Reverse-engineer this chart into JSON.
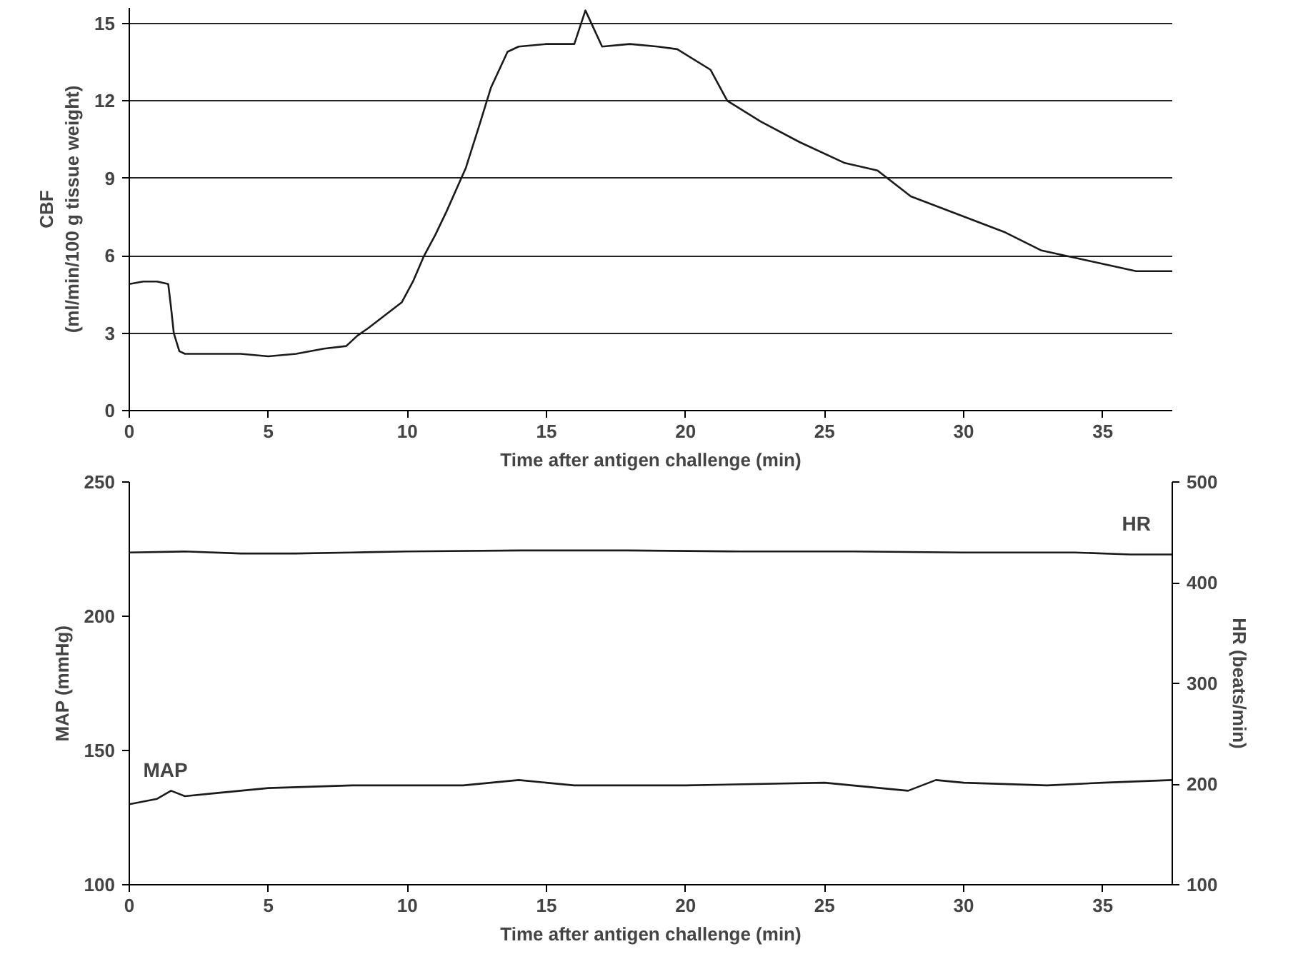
{
  "chart_data": [
    {
      "type": "line",
      "xlabel": "Time after antigen challenge (min)",
      "ylabel": "CBF\n(ml/min/100 g tissue weight)",
      "xlim": [
        0,
        37.5
      ],
      "xticks": [
        0,
        5,
        10,
        15,
        20,
        25,
        30,
        35
      ],
      "ylim": [
        0,
        15.6
      ],
      "yticks": [
        0,
        3,
        6,
        9,
        12,
        15
      ],
      "grid": "y",
      "series": [
        {
          "color": "#1a1a1a",
          "x": [
            0,
            0.5,
            1,
            1.4,
            1.5,
            1.6,
            1.8,
            2,
            3,
            4,
            5,
            6,
            7,
            7.8,
            8.2,
            8.6,
            9.2,
            9.8,
            10.2,
            10.6,
            11,
            11.4,
            12.1,
            12.6,
            13,
            13.6,
            14,
            15,
            16,
            16.4,
            17,
            18,
            19,
            19.7,
            20.9,
            21.5,
            22.7,
            24.1,
            25.7,
            26.9,
            28.1,
            29.8,
            31.5,
            32.8,
            34.5,
            36.2,
            37.5
          ],
          "values": [
            4.9,
            5.0,
            5.0,
            4.9,
            4.0,
            3.0,
            2.3,
            2.2,
            2.2,
            2.2,
            2.1,
            2.2,
            2.4,
            2.5,
            2.9,
            3.2,
            3.7,
            4.2,
            5.0,
            6.0,
            6.8,
            7.7,
            9.4,
            11.1,
            12.5,
            13.9,
            14.1,
            14.2,
            14.2,
            15.5,
            14.1,
            14.2,
            14.1,
            14.0,
            13.2,
            12.0,
            11.2,
            10.4,
            9.6,
            9.3,
            8.3,
            7.6,
            6.9,
            6.2,
            5.8,
            5.4,
            5.4
          ]
        }
      ]
    },
    {
      "type": "line",
      "xlabel": "Time after antigen challenge (min)",
      "ylabel": "MAP (mmHg)",
      "y2label": "HR (beats/min)",
      "xlim": [
        0,
        37.5
      ],
      "xticks": [
        0,
        5,
        10,
        15,
        20,
        25,
        30,
        35
      ],
      "ylim": [
        100,
        250
      ],
      "yticks": [
        100,
        150,
        200,
        250
      ],
      "y2lim": [
        100,
        500
      ],
      "y2ticks": [
        100,
        200,
        300,
        400,
        500
      ],
      "grid": false,
      "series": [
        {
          "name": "HR",
          "color": "#1a1a1a",
          "axis": "y2",
          "x": [
            0,
            2,
            4,
            6,
            8,
            10,
            14,
            18,
            22,
            26,
            30,
            34,
            36,
            37.5
          ],
          "values": [
            430,
            431,
            429,
            429,
            430,
            431,
            432,
            432,
            431,
            431,
            430,
            430,
            428,
            428
          ]
        },
        {
          "name": "MAP",
          "color": "#1a1a1a",
          "x": [
            0,
            0.5,
            1,
            1.5,
            2,
            3,
            4,
            5,
            8,
            12,
            14,
            16,
            20,
            25,
            28,
            29,
            30,
            33,
            35,
            37.5
          ],
          "values": [
            130,
            131,
            132,
            135,
            133,
            134,
            135,
            136,
            137,
            137,
            139,
            137,
            137,
            138,
            135,
            139,
            138,
            137,
            138,
            139
          ]
        }
      ]
    }
  ]
}
